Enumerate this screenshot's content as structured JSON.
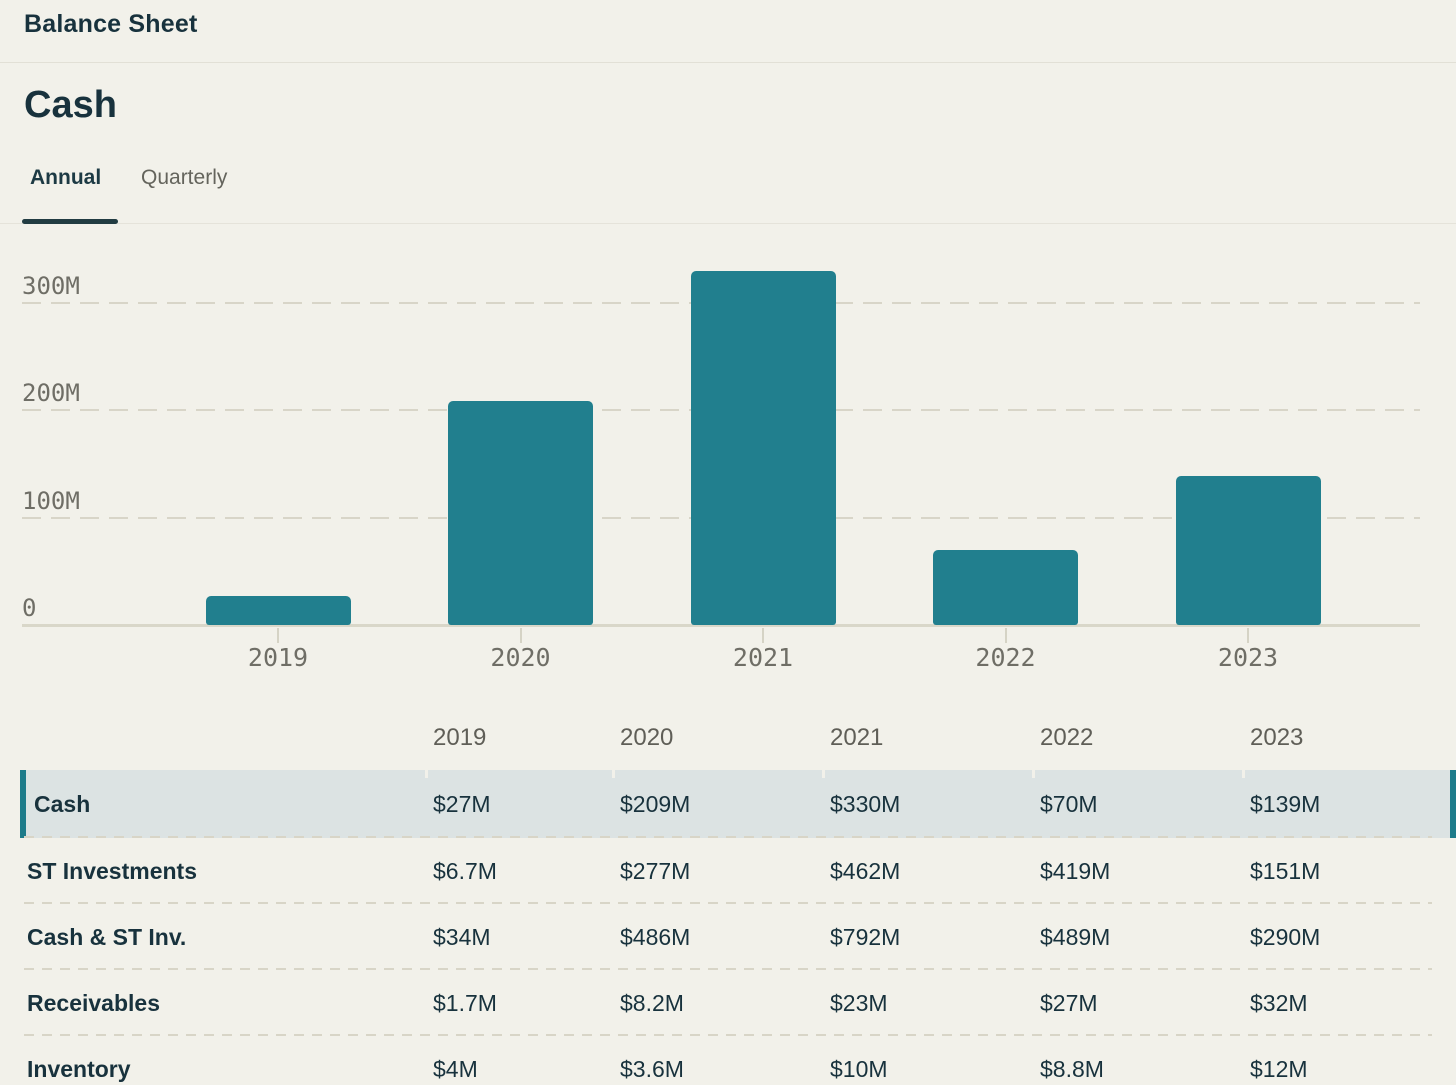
{
  "header": {
    "title": "Balance Sheet"
  },
  "section": {
    "title": "Cash"
  },
  "tabs": [
    {
      "label": "Annual",
      "active": true
    },
    {
      "label": "Quarterly",
      "active": false
    }
  ],
  "chart_data": {
    "type": "bar",
    "title": "Cash",
    "categories": [
      "2019",
      "2020",
      "2021",
      "2022",
      "2023"
    ],
    "values": [
      27,
      209,
      330,
      70,
      139
    ],
    "y_ticks": [
      {
        "label": "0",
        "value": 0
      },
      {
        "label": "100M",
        "value": 100
      },
      {
        "label": "200M",
        "value": 200
      },
      {
        "label": "300M",
        "value": 300
      }
    ],
    "ylim": [
      0,
      336
    ],
    "grid": "horizontal-dashed",
    "legend": "none",
    "bar_color": "#217f8e"
  },
  "table": {
    "columns": [
      "2019",
      "2020",
      "2021",
      "2022",
      "2023"
    ],
    "rows": [
      {
        "label": "Cash",
        "values": [
          "$27M",
          "$209M",
          "$330M",
          "$70M",
          "$139M"
        ],
        "highlighted": true
      },
      {
        "label": "ST Investments",
        "values": [
          "$6.7M",
          "$277M",
          "$462M",
          "$419M",
          "$151M"
        ],
        "highlighted": false
      },
      {
        "label": "Cash & ST Inv.",
        "values": [
          "$34M",
          "$486M",
          "$792M",
          "$489M",
          "$290M"
        ],
        "highlighted": false
      },
      {
        "label": "Receivables",
        "values": [
          "$1.7M",
          "$8.2M",
          "$23M",
          "$27M",
          "$32M"
        ],
        "highlighted": false
      },
      {
        "label": "Inventory",
        "values": [
          "$4M",
          "$3.6M",
          "$10M",
          "$8.8M",
          "$12M"
        ],
        "highlighted": false
      }
    ]
  },
  "colors": {
    "accent_teal": "#217f8e",
    "highlight_row_bg": "#dce3e3",
    "highlight_border": "#1d7b8a",
    "page_bg": "#f2f1ea",
    "dark_text": "#18323d",
    "muted_text": "#6f6e66"
  }
}
